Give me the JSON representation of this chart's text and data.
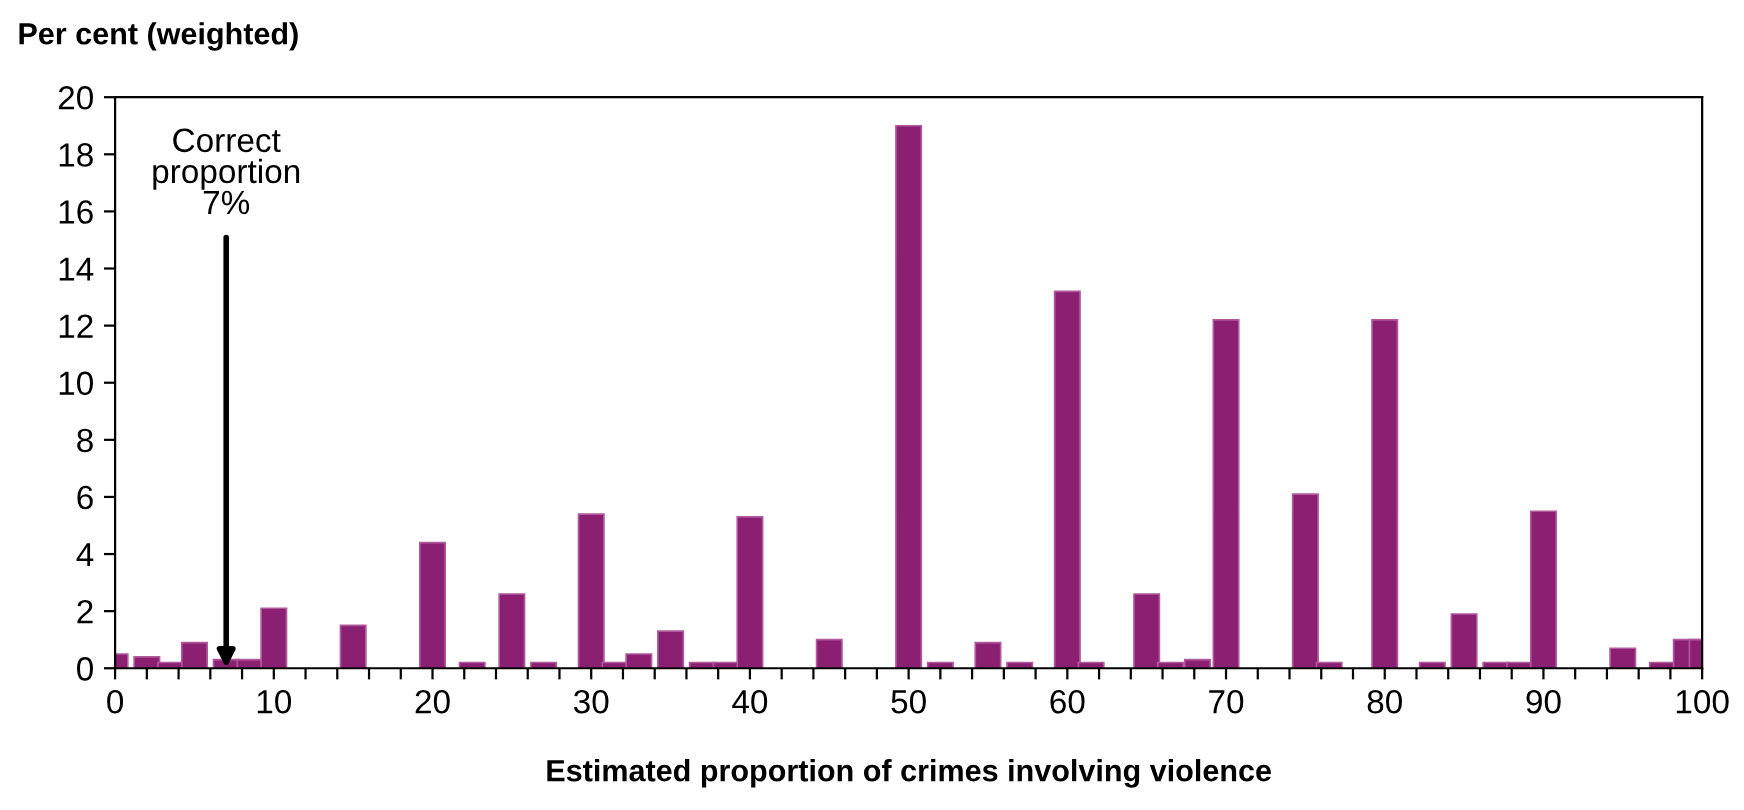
{
  "chart_data": {
    "type": "bar",
    "ylabel": "Per cent (weighted)",
    "xlabel": "Estimated proportion of crimes involving violence",
    "x": [
      0,
      2,
      3.5,
      5,
      7,
      8.5,
      10,
      15,
      20,
      22.5,
      25,
      27,
      30,
      31.5,
      33,
      35,
      37,
      38.5,
      40,
      45,
      50,
      52,
      55,
      57,
      60,
      61.5,
      65,
      66.5,
      68.2,
      70,
      75,
      76.5,
      80,
      83,
      85,
      87,
      88.5,
      90,
      95,
      97.5,
      99,
      100
    ],
    "values": [
      0.5,
      0.4,
      0.2,
      0.9,
      0.3,
      0.3,
      2.1,
      1.5,
      4.4,
      0.2,
      2.6,
      0.2,
      5.4,
      0.2,
      0.5,
      1.3,
      0.2,
      0.2,
      5.3,
      1.0,
      19.0,
      0.2,
      0.9,
      0.2,
      13.2,
      0.2,
      2.6,
      0.2,
      0.3,
      12.2,
      6.1,
      0.2,
      12.2,
      0.2,
      1.9,
      0.2,
      0.2,
      5.5,
      0.7,
      0.2,
      1.0,
      1.0
    ],
    "color": "#8b1f72",
    "xlim": [
      0,
      100
    ],
    "ylim": [
      0,
      20
    ],
    "xticks": [
      0,
      {
        "value": 2,
        "label": null
      },
      {
        "value": 4,
        "label": null
      },
      {
        "value": 6,
        "label": null
      },
      {
        "value": 8,
        "label": null
      },
      10,
      {
        "value": 12,
        "label": null
      },
      {
        "value": 14,
        "label": null
      },
      {
        "value": 16,
        "label": null
      },
      {
        "value": 18,
        "label": null
      },
      20,
      {
        "value": 22,
        "label": null
      },
      {
        "value": 24,
        "label": null
      },
      {
        "value": 26,
        "label": null
      },
      {
        "value": 28,
        "label": null
      },
      30,
      {
        "value": 32,
        "label": null
      },
      {
        "value": 34,
        "label": null
      },
      {
        "value": 36,
        "label": null
      },
      {
        "value": 38,
        "label": null
      },
      40,
      {
        "value": 42,
        "label": null
      },
      {
        "value": 44,
        "label": null
      },
      {
        "value": 46,
        "label": null
      },
      {
        "value": 48,
        "label": null
      },
      50,
      {
        "value": 52,
        "label": null
      },
      {
        "value": 54,
        "label": null
      },
      {
        "value": 56,
        "label": null
      },
      {
        "value": 58,
        "label": null
      },
      60,
      {
        "value": 62,
        "label": null
      },
      {
        "value": 64,
        "label": null
      },
      {
        "value": 66,
        "label": null
      },
      {
        "value": 68,
        "label": null
      },
      70,
      {
        "value": 72,
        "label": null
      },
      {
        "value": 74,
        "label": null
      },
      {
        "value": 76,
        "label": null
      },
      {
        "value": 78,
        "label": null
      },
      80,
      {
        "value": 82,
        "label": null
      },
      {
        "value": 84,
        "label": null
      },
      {
        "value": 86,
        "label": null
      },
      {
        "value": 88,
        "label": null
      },
      90,
      {
        "value": 92,
        "label": null
      },
      {
        "value": 94,
        "label": null
      },
      {
        "value": 96,
        "label": null
      },
      {
        "value": 98,
        "label": null
      },
      100
    ],
    "yticks": [
      0,
      2,
      4,
      6,
      8,
      10,
      12,
      14,
      16,
      18,
      20
    ],
    "grid": false,
    "legend": false,
    "annotations": [
      {
        "text": "Correct\nproportion\n7%",
        "x": 7,
        "y": 0
      }
    ]
  }
}
